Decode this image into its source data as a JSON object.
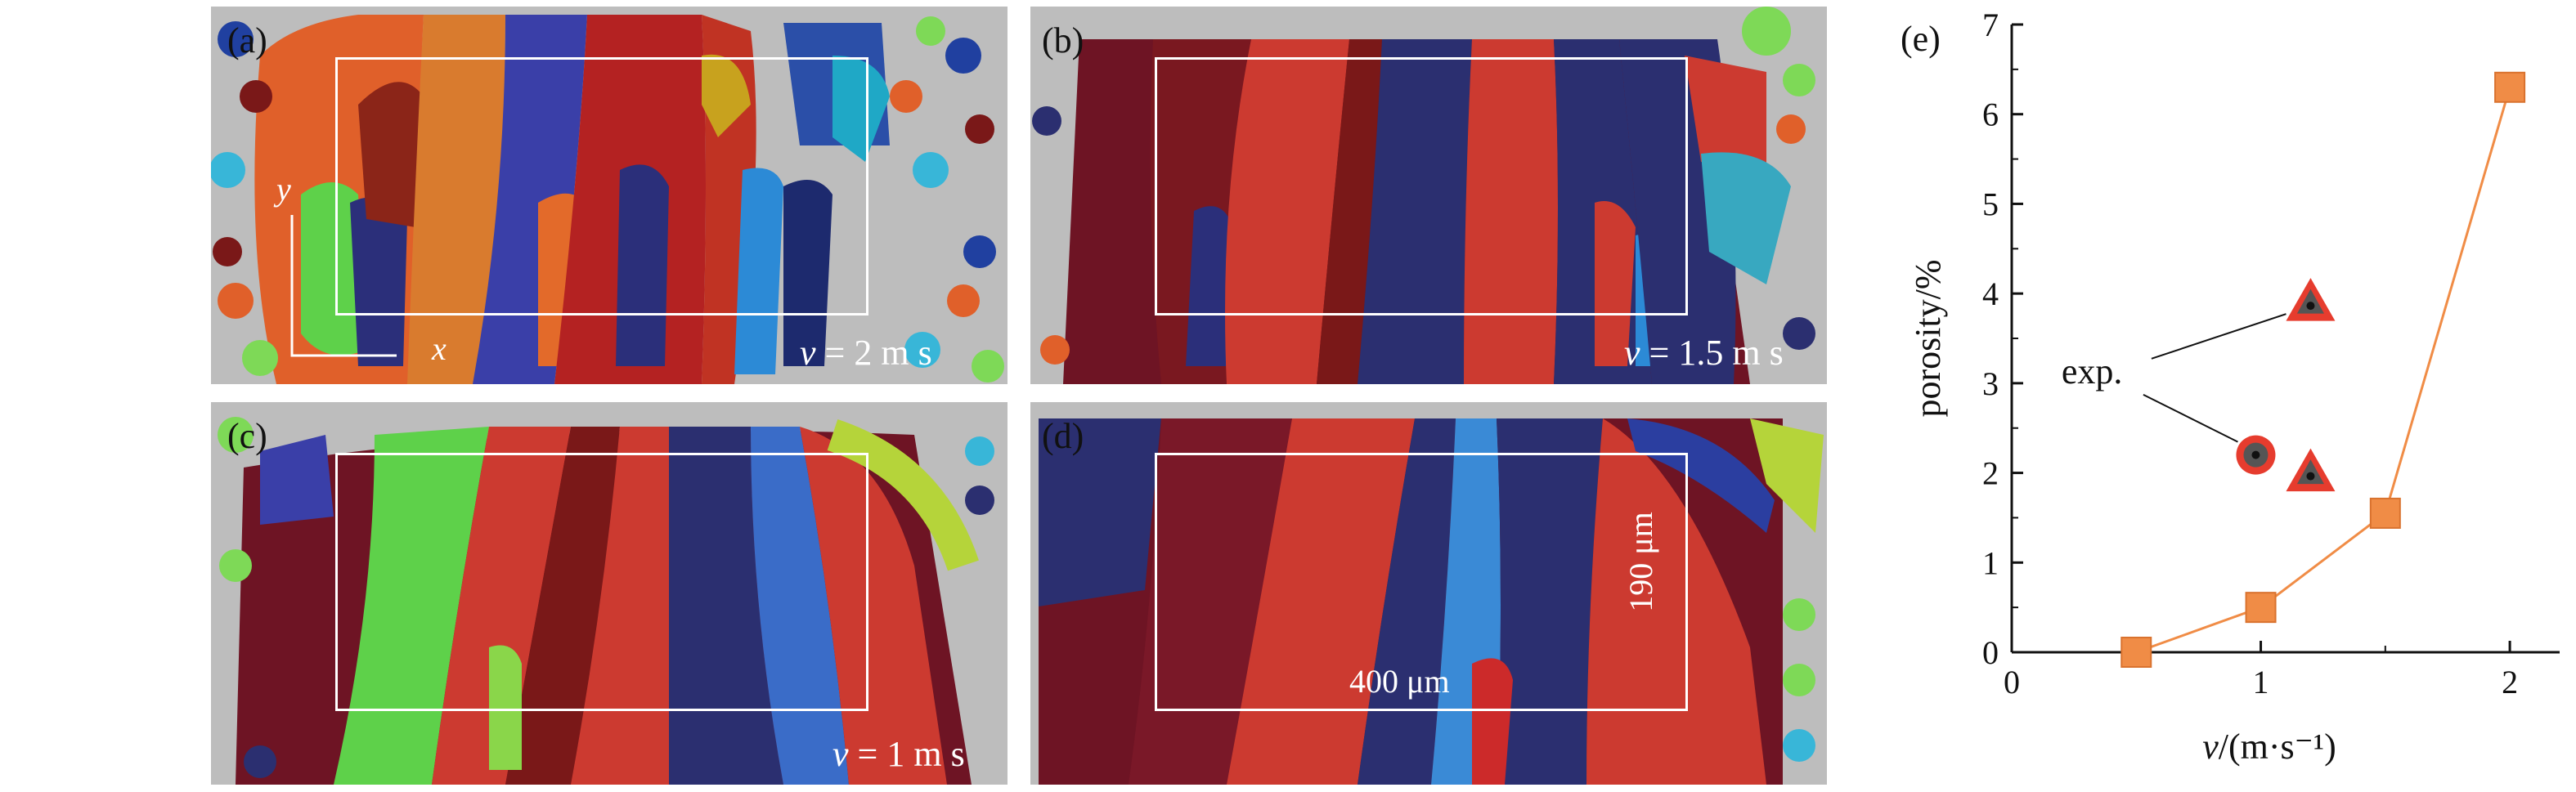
{
  "panels": [
    {
      "label": "(a)",
      "velocity_var": "v",
      "velocity_text": " = 2 m s"
    },
    {
      "label": "(b)",
      "velocity_var": "v",
      "velocity_text": " = 1.5 m s"
    },
    {
      "label": "(c)",
      "velocity_var": "v",
      "velocity_text": " = 1 m s"
    },
    {
      "label": "(d)",
      "velocity_var": "",
      "velocity_text": ""
    }
  ],
  "axes_tags": {
    "y": "y",
    "x": "x"
  },
  "scale": {
    "width": "400 μm",
    "height": "190 μm"
  },
  "chart_data": {
    "type": "scatter",
    "label": "(e)",
    "xlabel": "v/(m·s⁻¹)",
    "ylabel": "porosity/%",
    "xlim": [
      0,
      2.2
    ],
    "ylim": [
      0,
      7
    ],
    "xticks": [
      0,
      1,
      2
    ],
    "yticks": [
      0,
      1,
      2,
      3,
      4,
      5,
      6,
      7
    ],
    "series": [
      {
        "marker": "square",
        "color": "#f08c46",
        "line": true,
        "x": [
          0.5,
          1.0,
          1.5,
          2.0
        ],
        "y": [
          0.0,
          0.5,
          1.55,
          6.3
        ]
      }
    ],
    "experimental": {
      "annotation": "exp.",
      "points": [
        {
          "marker": "triangle",
          "x": 1.2,
          "y": 3.9
        },
        {
          "marker": "circle",
          "x": 0.98,
          "y": 2.2
        },
        {
          "marker": "triangle",
          "x": 1.2,
          "y": 2.0
        }
      ]
    }
  },
  "colors": {
    "orange_series": "#f08c46",
    "exp_marker_edge": "#e63c2e",
    "exp_marker_fill": "#555555"
  }
}
